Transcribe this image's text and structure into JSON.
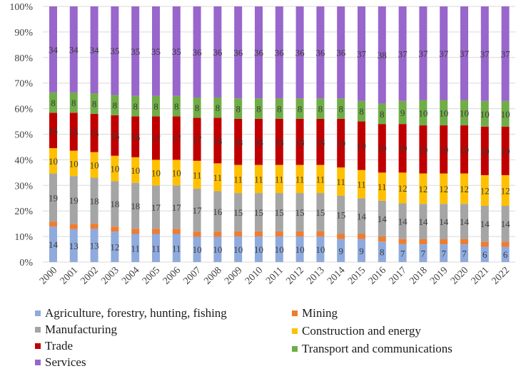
{
  "chart_data": {
    "type": "bar",
    "stacked": "percent",
    "title": "",
    "xlabel": "",
    "ylabel": "",
    "ylim": [
      0,
      100
    ],
    "yticks": [
      "0%",
      "10%",
      "20%",
      "30%",
      "40%",
      "50%",
      "60%",
      "70%",
      "80%",
      "90%",
      "100%"
    ],
    "grid": true,
    "legend_position": "bottom",
    "categories": [
      "2000",
      "2001",
      "2002",
      "2003",
      "2004",
      "2005",
      "2006",
      "2007",
      "2008",
      "2009",
      "2010",
      "2011",
      "2012",
      "2013",
      "2014",
      "2015",
      "2016",
      "2017",
      "2018",
      "2019",
      "2020",
      "2021",
      "2022"
    ],
    "series": [
      {
        "name": "Agriculture, forestry, hunting, fishing",
        "color": "#8faadc",
        "show_labels": true,
        "values": [
          14,
          13,
          13,
          12,
          11,
          11,
          11,
          10,
          10,
          10,
          10,
          10,
          10,
          10,
          9,
          9,
          8,
          7,
          7,
          7,
          7,
          6,
          6
        ]
      },
      {
        "name": "Mining",
        "color": "#ed7d31",
        "show_labels": false,
        "values": [
          2,
          2,
          2,
          2,
          2,
          2,
          2,
          2,
          2,
          2,
          2,
          2,
          2,
          2,
          2,
          2,
          2,
          2,
          2,
          2,
          2,
          2,
          2
        ]
      },
      {
        "name": "Manufacturing",
        "color": "#a5a5a5",
        "show_labels": true,
        "values": [
          19,
          19,
          18,
          18,
          18,
          17,
          17,
          17,
          16,
          15,
          15,
          15,
          15,
          15,
          15,
          14,
          14,
          14,
          14,
          14,
          14,
          14,
          14
        ]
      },
      {
        "name": "Construction and energy",
        "color": "#ffc000",
        "show_labels": true,
        "values": [
          10,
          10,
          10,
          10,
          10,
          10,
          10,
          11,
          11,
          11,
          11,
          11,
          11,
          11,
          11,
          11,
          11,
          12,
          12,
          12,
          12,
          12,
          12
        ]
      },
      {
        "name": "Trade",
        "color": "#c00000",
        "show_labels": true,
        "values": [
          14,
          15,
          15,
          16,
          16,
          17,
          17,
          17,
          18,
          18,
          18,
          18,
          18,
          18,
          19,
          19,
          19,
          19,
          19,
          19,
          19,
          19,
          19
        ]
      },
      {
        "name": "Transport and communications",
        "color": "#70ad47",
        "show_labels": true,
        "values": [
          8,
          8,
          8,
          8,
          8,
          8,
          8,
          8,
          8,
          8,
          8,
          8,
          8,
          8,
          8,
          8,
          8,
          9,
          10,
          10,
          10,
          10,
          10
        ]
      },
      {
        "name": "Services",
        "color": "#9966cc",
        "show_labels": true,
        "values": [
          34,
          34,
          34,
          35,
          35,
          35,
          35,
          36,
          36,
          36,
          36,
          36,
          36,
          36,
          36,
          37,
          38,
          37,
          37,
          37,
          37,
          37,
          37
        ]
      }
    ]
  },
  "legend": {
    "items": [
      {
        "label": "Agriculture, forestry, hunting, fishing",
        "color": "#8faadc"
      },
      {
        "label": "Mining",
        "color": "#ed7d31"
      },
      {
        "label": "Manufacturing",
        "color": "#a5a5a5"
      },
      {
        "label": "Construction and energy",
        "color": "#ffc000"
      },
      {
        "label": "Trade",
        "color": "#c00000"
      },
      {
        "label": "Transport and communications",
        "color": "#70ad47"
      },
      {
        "label": "Services",
        "color": "#9966cc"
      }
    ]
  }
}
